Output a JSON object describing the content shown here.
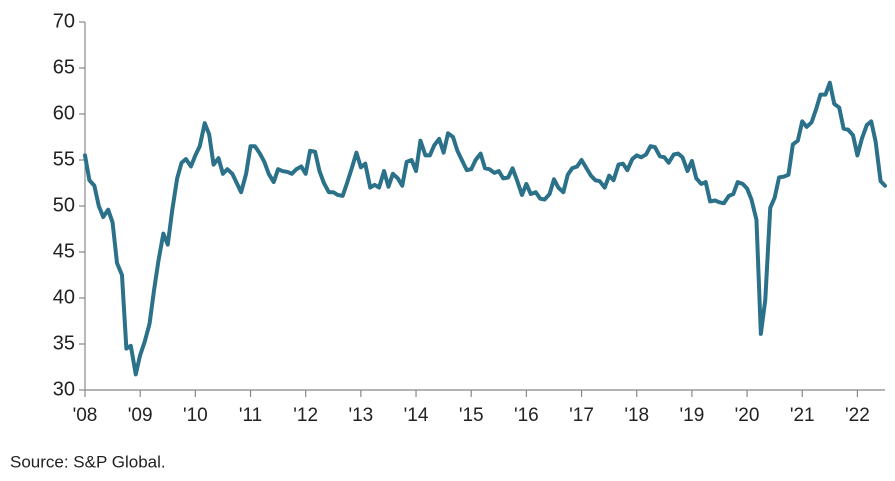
{
  "chart_data": {
    "type": "line",
    "source": "Source: S&P Global.",
    "color": "#2a7189",
    "xlim": [
      2008,
      2022.5
    ],
    "xticks": [
      {
        "value": 2008,
        "label": "'08"
      },
      {
        "value": 2009,
        "label": "'09"
      },
      {
        "value": 2010,
        "label": "'10"
      },
      {
        "value": 2011,
        "label": "'11"
      },
      {
        "value": 2012,
        "label": "'12"
      },
      {
        "value": 2013,
        "label": "'13"
      },
      {
        "value": 2014,
        "label": "'14"
      },
      {
        "value": 2015,
        "label": "'15"
      },
      {
        "value": 2016,
        "label": "'16"
      },
      {
        "value": 2017,
        "label": "'17"
      },
      {
        "value": 2018,
        "label": "'18"
      },
      {
        "value": 2019,
        "label": "'19"
      },
      {
        "value": 2020,
        "label": "'20"
      },
      {
        "value": 2021,
        "label": "'21"
      },
      {
        "value": 2022,
        "label": "'22"
      }
    ],
    "ylim": [
      30,
      70
    ],
    "yticks": [
      30,
      35,
      40,
      45,
      50,
      55,
      60,
      65,
      70
    ],
    "grid": false,
    "x": [
      2008,
      2008.08,
      2008.17,
      2008.25,
      2008.33,
      2008.42,
      2008.5,
      2008.58,
      2008.67,
      2008.75,
      2008.83,
      2008.92,
      2009,
      2009.08,
      2009.17,
      2009.25,
      2009.33,
      2009.42,
      2009.5,
      2009.58,
      2009.67,
      2009.75,
      2009.83,
      2009.92,
      2010,
      2010.08,
      2010.17,
      2010.25,
      2010.33,
      2010.42,
      2010.5,
      2010.58,
      2010.67,
      2010.75,
      2010.83,
      2010.92,
      2011,
      2011.08,
      2011.17,
      2011.25,
      2011.33,
      2011.42,
      2011.5,
      2011.58,
      2011.67,
      2011.75,
      2011.83,
      2011.92,
      2012,
      2012.08,
      2012.17,
      2012.25,
      2012.33,
      2012.42,
      2012.5,
      2012.58,
      2012.67,
      2012.75,
      2012.83,
      2012.92,
      2013,
      2013.08,
      2013.17,
      2013.25,
      2013.33,
      2013.42,
      2013.5,
      2013.58,
      2013.67,
      2013.75,
      2013.83,
      2013.92,
      2014,
      2014.08,
      2014.17,
      2014.25,
      2014.33,
      2014.42,
      2014.5,
      2014.58,
      2014.67,
      2014.75,
      2014.83,
      2014.92,
      2015,
      2015.08,
      2015.17,
      2015.25,
      2015.33,
      2015.42,
      2015.5,
      2015.58,
      2015.67,
      2015.75,
      2015.83,
      2015.92,
      2016,
      2016.08,
      2016.17,
      2016.25,
      2016.33,
      2016.42,
      2016.5,
      2016.58,
      2016.67,
      2016.75,
      2016.83,
      2016.92,
      2017,
      2017.08,
      2017.17,
      2017.25,
      2017.33,
      2017.42,
      2017.5,
      2017.58,
      2017.67,
      2017.75,
      2017.83,
      2017.92,
      2018,
      2018.08,
      2018.17,
      2018.25,
      2018.33,
      2018.42,
      2018.5,
      2018.58,
      2018.67,
      2018.75,
      2018.83,
      2018.92,
      2019,
      2019.08,
      2019.17,
      2019.25,
      2019.33,
      2019.42,
      2019.5,
      2019.58,
      2019.67,
      2019.75,
      2019.83,
      2019.92,
      2020,
      2020.08,
      2020.17,
      2020.25,
      2020.33,
      2020.42,
      2020.5,
      2020.58,
      2020.67,
      2020.75,
      2020.83,
      2020.92,
      2021,
      2021.08,
      2021.17,
      2021.25,
      2021.33,
      2021.42,
      2021.5,
      2021.58,
      2021.67,
      2021.75,
      2021.83,
      2021.92,
      2022,
      2022.08,
      2022.17,
      2022.25,
      2022.33,
      2022.42,
      2022.5
    ],
    "values": [
      55.5,
      52.8,
      52.2,
      50,
      48.8,
      49.6,
      48.2,
      43.8,
      42.5,
      34.5,
      34.8,
      31.7,
      33.8,
      35.2,
      37.2,
      40.8,
      44,
      47,
      45.8,
      49.5,
      53,
      54.7,
      55.1,
      54.3,
      55.5,
      56.5,
      59,
      57.8,
      54.5,
      55.2,
      53.5,
      54,
      53.5,
      52.5,
      51.5,
      53.5,
      56.5,
      56.5,
      55.7,
      54.8,
      53.5,
      52.6,
      54,
      53.8,
      53.7,
      53.5,
      54,
      54.3,
      53.5,
      56,
      55.9,
      53.8,
      52.5,
      51.5,
      51.5,
      51.2,
      51.1,
      52.5,
      54,
      55.8,
      54.2,
      54.6,
      52,
      52.3,
      52,
      53.8,
      52.1,
      53.5,
      53,
      52.2,
      54.8,
      55,
      53.8,
      57.1,
      55.5,
      55.5,
      56.6,
      57.3,
      55.8,
      57.9,
      57.5,
      56,
      55,
      53.9,
      54,
      55,
      55.7,
      54.1,
      54,
      53.6,
      53.8,
      53,
      53.1,
      54.1,
      52.8,
      51.2,
      52.4,
      51.3,
      51.5,
      50.8,
      50.7,
      51.3,
      52.9,
      52,
      51.5,
      53.4,
      54.1,
      54.3,
      55,
      54.2,
      53.3,
      52.8,
      52.7,
      52,
      53.3,
      52.8,
      54.5,
      54.6,
      53.9,
      55.1,
      55.5,
      55.3,
      55.6,
      56.5,
      56.4,
      55.4,
      55.3,
      54.7,
      55.6,
      55.7,
      55.3,
      53.8,
      54.9,
      53,
      52.4,
      52.6,
      50.5,
      50.6,
      50.4,
      50.3,
      51.1,
      51.3,
      52.6,
      52.4,
      51.9,
      50.7,
      48.5,
      36.1,
      39.8,
      49.8,
      50.9,
      53.1,
      53.2,
      53.4,
      56.7,
      57.1,
      59.2,
      58.6,
      59.1,
      60.5,
      62.1,
      62.1,
      63.4,
      61.1,
      60.7,
      58.4,
      58.3,
      57.7,
      55.5,
      57.3,
      58.8,
      59.2,
      57,
      52.7,
      52.2
    ]
  }
}
